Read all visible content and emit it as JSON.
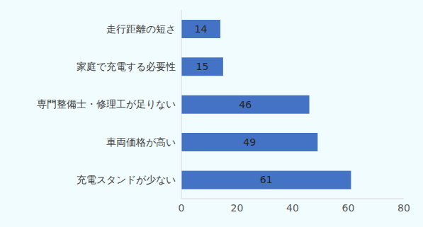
{
  "chart_data": {
    "type": "bar",
    "orientation": "horizontal",
    "categories": [
      "走行距離の短さ",
      "家庭で充電する必要性",
      "専門整備士・修理工が足りない",
      "車両価格が高い",
      "充電スタンドが少ない"
    ],
    "values": [
      14,
      15,
      46,
      49,
      61
    ],
    "color": "#4472c4",
    "xlim": [
      0,
      80
    ],
    "xticks": [
      0,
      20,
      40,
      60,
      80
    ],
    "grid": false,
    "data_labels": true
  }
}
